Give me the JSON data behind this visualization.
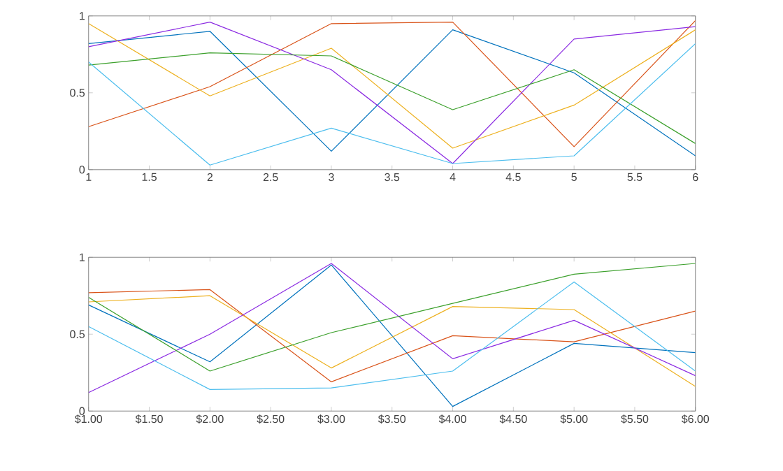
{
  "chart_data": [
    {
      "type": "line",
      "x": [
        1,
        2,
        3,
        4,
        5,
        6
      ],
      "xlim": [
        1,
        6
      ],
      "ylim": [
        0,
        1
      ],
      "xticks": [
        1,
        1.5,
        2,
        2.5,
        3,
        3.5,
        4,
        4.5,
        5,
        5.5,
        6
      ],
      "yticks": [
        0,
        0.5,
        1
      ],
      "series": [
        {
          "color": "#0072bd",
          "values": [
            0.82,
            0.9,
            0.12,
            0.91,
            0.63,
            0.09
          ]
        },
        {
          "color": "#d95319",
          "values": [
            0.28,
            0.54,
            0.95,
            0.96,
            0.15,
            0.97
          ]
        },
        {
          "color": "#edb120",
          "values": [
            0.95,
            0.48,
            0.79,
            0.14,
            0.42,
            0.91
          ]
        },
        {
          "color": "#8b2be2",
          "values": [
            0.8,
            0.96,
            0.65,
            0.04,
            0.85,
            0.93
          ]
        },
        {
          "color": "#3ca02c",
          "values": [
            0.68,
            0.76,
            0.74,
            0.39,
            0.65,
            0.17
          ]
        },
        {
          "color": "#4dbeee",
          "values": [
            0.7,
            0.03,
            0.27,
            0.04,
            0.09,
            0.82
          ]
        }
      ]
    },
    {
      "type": "line",
      "x": [
        1,
        2,
        3,
        4,
        5,
        6
      ],
      "xlim": [
        1,
        6
      ],
      "ylim": [
        0,
        1
      ],
      "xticks": [
        {
          "value": 1,
          "label": "$1.00"
        },
        {
          "value": 1.5,
          "label": "$1.50"
        },
        {
          "value": 2,
          "label": "$2.00"
        },
        {
          "value": 2.5,
          "label": "$2.50"
        },
        {
          "value": 3,
          "label": "$3.00"
        },
        {
          "value": 3.5,
          "label": "$3.50"
        },
        {
          "value": 4,
          "label": "$4.00"
        },
        {
          "value": 4.5,
          "label": "$4.50"
        },
        {
          "value": 5,
          "label": "$5.00"
        },
        {
          "value": 5.5,
          "label": "$5.50"
        },
        {
          "value": 6,
          "label": "$6.00"
        }
      ],
      "yticks": [
        0,
        0.5,
        1
      ],
      "series": [
        {
          "color": "#0072bd",
          "values": [
            0.69,
            0.32,
            0.95,
            0.03,
            0.44,
            0.38
          ]
        },
        {
          "color": "#d95319",
          "values": [
            0.77,
            0.79,
            0.19,
            0.49,
            0.45,
            0.65
          ]
        },
        {
          "color": "#edb120",
          "values": [
            0.71,
            0.75,
            0.28,
            0.68,
            0.66,
            0.16
          ]
        },
        {
          "color": "#8b2be2",
          "values": [
            0.12,
            0.5,
            0.96,
            0.34,
            0.59,
            0.23
          ]
        },
        {
          "color": "#3ca02c",
          "values": [
            0.74,
            0.26,
            0.51,
            0.7,
            0.89,
            0.96
          ]
        },
        {
          "color": "#4dbeee",
          "values": [
            0.55,
            0.14,
            0.15,
            0.26,
            0.84,
            0.26
          ]
        }
      ]
    }
  ]
}
